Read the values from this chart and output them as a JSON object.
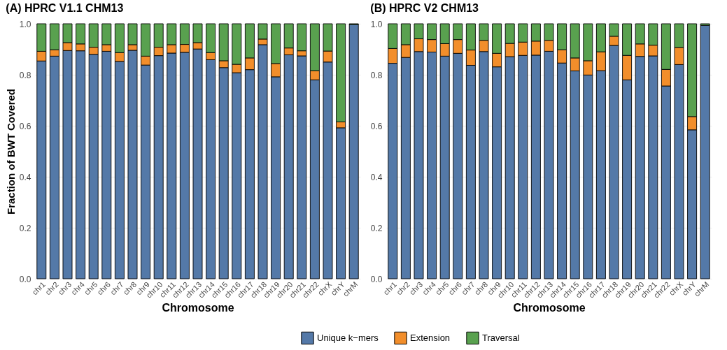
{
  "chart_data": [
    {
      "type": "bar",
      "stacked": true,
      "title": "(A) HPRC V1.1 CHM13",
      "xlabel": "Chromosome",
      "ylabel": "Fraction of BWT Covered",
      "categories": [
        "chr1",
        "chr2",
        "chr3",
        "chr4",
        "chr5",
        "chr6",
        "chr7",
        "chr8",
        "chr9",
        "chr10",
        "chr11",
        "chr12",
        "chr13",
        "chr14",
        "chr15",
        "chr16",
        "chr17",
        "chr18",
        "chr19",
        "chr20",
        "chr21",
        "chr22",
        "chrX",
        "chrY",
        "chrM"
      ],
      "series": [
        {
          "name": "Unique k−mers",
          "color": "#5479a8",
          "values": [
            0.854,
            0.873,
            0.895,
            0.894,
            0.88,
            0.892,
            0.852,
            0.896,
            0.838,
            0.875,
            0.885,
            0.888,
            0.901,
            0.859,
            0.828,
            0.808,
            0.82,
            0.918,
            0.792,
            0.878,
            0.874,
            0.78,
            0.85,
            0.592,
            0.997
          ]
        },
        {
          "name": "Extension",
          "color": "#f28e2b",
          "values": [
            0.038,
            0.025,
            0.031,
            0.027,
            0.028,
            0.026,
            0.035,
            0.022,
            0.035,
            0.033,
            0.033,
            0.031,
            0.025,
            0.028,
            0.027,
            0.033,
            0.046,
            0.022,
            0.052,
            0.027,
            0.02,
            0.036,
            0.043,
            0.023,
            null
          ]
        },
        {
          "name": "Traversal",
          "color": "#59a14f",
          "values": [
            0.108,
            0.102,
            0.074,
            0.079,
            0.092,
            0.082,
            0.113,
            0.082,
            0.127,
            0.092,
            0.082,
            0.081,
            0.074,
            0.113,
            0.145,
            0.159,
            0.134,
            0.06,
            0.156,
            0.095,
            0.106,
            0.184,
            0.107,
            0.385,
            0.003
          ]
        }
      ],
      "ylim": [
        0,
        1
      ],
      "yticks": [
        {
          "value": 0,
          "label": "0.0"
        },
        {
          "value": 0.2,
          "label": "0.2"
        },
        {
          "value": 0.4,
          "label": "0.4"
        },
        {
          "value": 0.6,
          "label": "0.6"
        },
        {
          "value": 0.8,
          "label": "0.8"
        },
        {
          "value": 1,
          "label": "1.0"
        }
      ],
      "grid": true,
      "legend": "bottom"
    },
    {
      "type": "bar",
      "stacked": true,
      "title": "(B) HPRC V2 CHM13",
      "xlabel": "Chromosome",
      "categories": [
        "chr1",
        "chr2",
        "chr3",
        "chr4",
        "chr5",
        "chr6",
        "chr7",
        "chr8",
        "chr9",
        "chr10",
        "chr11",
        "chr12",
        "chr13",
        "chr14",
        "chr15",
        "chr16",
        "chr17",
        "chr18",
        "chr19",
        "chr20",
        "chr21",
        "chr22",
        "chrX",
        "chrY",
        "chrM"
      ],
      "series": [
        {
          "name": "Unique k−mers",
          "color": "#5479a8",
          "values": [
            0.845,
            0.868,
            0.891,
            0.889,
            0.873,
            0.884,
            0.837,
            0.891,
            0.831,
            0.871,
            0.876,
            0.877,
            0.892,
            0.846,
            0.815,
            0.799,
            0.816,
            0.915,
            0.78,
            0.872,
            0.874,
            0.756,
            0.84,
            0.584,
            0.994
          ]
        },
        {
          "name": "Extension",
          "color": "#f28e2b",
          "values": [
            0.058,
            0.05,
            0.05,
            0.049,
            0.049,
            0.054,
            0.06,
            0.044,
            0.053,
            0.052,
            0.052,
            0.055,
            0.043,
            0.052,
            0.051,
            0.056,
            0.074,
            0.036,
            0.096,
            0.049,
            0.042,
            0.065,
            0.067,
            0.052,
            null
          ]
        },
        {
          "name": "Traversal",
          "color": "#59a14f",
          "values": [
            0.097,
            0.082,
            0.059,
            0.062,
            0.078,
            0.062,
            0.103,
            0.065,
            0.116,
            0.077,
            0.072,
            0.068,
            0.065,
            0.102,
            0.134,
            0.145,
            0.11,
            0.049,
            0.124,
            0.079,
            0.084,
            0.179,
            0.093,
            0.364,
            0.006
          ]
        }
      ],
      "ylim": [
        0,
        1
      ],
      "yticks": [
        {
          "value": 0,
          "label": "0.0"
        },
        {
          "value": 0.2,
          "label": "0.2"
        },
        {
          "value": 0.4,
          "label": "0.4"
        },
        {
          "value": 0.6,
          "label": "0.6"
        },
        {
          "value": 0.8,
          "label": "0.8"
        },
        {
          "value": 1,
          "label": "1.0"
        }
      ],
      "grid": true,
      "legend": "bottom"
    }
  ]
}
